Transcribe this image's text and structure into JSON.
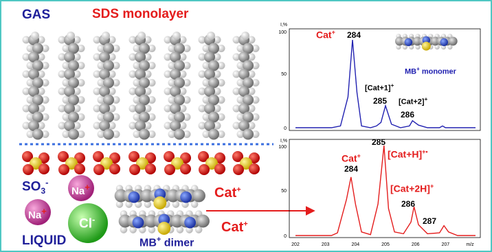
{
  "labels": {
    "gas": "GAS",
    "sds": "SDS monolayer",
    "so3": "SO",
    "so3_sub": "3",
    "so3_sup": "-",
    "na": "Na",
    "na_sup": "+",
    "cl": "Cl",
    "cl_sup": "-",
    "liquid": "LIQUID",
    "mb_dimer": "MB",
    "mb_dimer_sup": "+",
    "mb_dimer_tail": " dimer",
    "cat": "Cat",
    "cat_sup": "+"
  },
  "colors": {
    "blue_text": "#20209a",
    "red_text": "#e41c1c",
    "frame": "#4fc7c3",
    "top_spectrum": "#2020b0",
    "bottom_spectrum": "#e41c1c",
    "carbon": "#9a9a9a",
    "hydrogen": "#f0f0f0",
    "oxygen": "#e00000",
    "sulfur": "#e8d020",
    "nitrogen": "#2040d0",
    "na_ion": "#d0409a",
    "cl_ion": "#30c020"
  },
  "icons": {
    "surfactant": "sds-molecule-icon",
    "sulfonate": "so3-headgroup-icon",
    "ion": "sphere-icon",
    "mb": "mb-molecule-icon",
    "arrow": "right-arrow-icon"
  },
  "chart_data": [
    {
      "type": "line",
      "ylabel": "I,%",
      "yticks": [
        "0",
        "50",
        "100"
      ],
      "ylim": [
        0,
        100
      ],
      "xlim": [
        202,
        208
      ],
      "series": [
        {
          "x": [
            202.0,
            203.2,
            203.5,
            203.75,
            203.9,
            204.05,
            204.2,
            204.5,
            204.7,
            204.85,
            205.0,
            205.2,
            205.5,
            205.8,
            205.9,
            206.1,
            206.4,
            206.8,
            206.9,
            207.0,
            207.3,
            208.0
          ],
          "y": [
            0,
            0,
            2,
            35,
            100,
            40,
            2,
            0,
            2,
            6,
            25,
            4,
            0,
            2,
            8,
            3,
            0,
            0,
            2,
            0,
            0,
            0
          ]
        }
      ],
      "annotations": [
        {
          "text": "Cat",
          "sup": "+",
          "color": "#e41c1c"
        },
        {
          "text": "284",
          "color": "#000000"
        },
        {
          "text": "[Cat+1]",
          "sup": "+",
          "color": "#000000"
        },
        {
          "text": "285",
          "color": "#000000"
        },
        {
          "text": "[Cat+2]",
          "sup": "+",
          "color": "#000000"
        },
        {
          "text": "286",
          "color": "#000000"
        },
        {
          "text": "MB",
          "sup": "+",
          "tail": " monomer",
          "color": "#2020b0"
        }
      ]
    },
    {
      "type": "line",
      "ylabel": "I,%",
      "yticks": [
        "0",
        "50",
        "100"
      ],
      "xticks": [
        "202",
        "203",
        "204",
        "205",
        "206",
        "207",
        "m/z"
      ],
      "ylim": [
        0,
        100
      ],
      "xlim": [
        202,
        208
      ],
      "series": [
        {
          "x": [
            202.0,
            203.2,
            203.4,
            203.7,
            203.85,
            204.0,
            204.2,
            204.5,
            204.75,
            204.95,
            205.1,
            205.3,
            205.6,
            205.85,
            205.95,
            206.1,
            206.4,
            206.8,
            206.95,
            207.1,
            207.4,
            208.0
          ],
          "y": [
            0,
            0,
            3,
            40,
            65,
            35,
            4,
            1,
            35,
            100,
            30,
            4,
            2,
            15,
            32,
            12,
            2,
            3,
            11,
            4,
            0,
            0
          ]
        }
      ],
      "annotations": [
        {
          "text": "Cat",
          "sup": "+",
          "color": "#e41c1c"
        },
        {
          "text": "284",
          "color": "#000000"
        },
        {
          "text": "285",
          "color": "#000000"
        },
        {
          "text": "[Cat+H]",
          "sup": "+•",
          "color": "#e41c1c"
        },
        {
          "text": "[Cat+2H]",
          "sup": "+",
          "color": "#e41c1c"
        },
        {
          "text": "286",
          "color": "#000000"
        },
        {
          "text": "287",
          "color": "#000000"
        }
      ]
    }
  ]
}
